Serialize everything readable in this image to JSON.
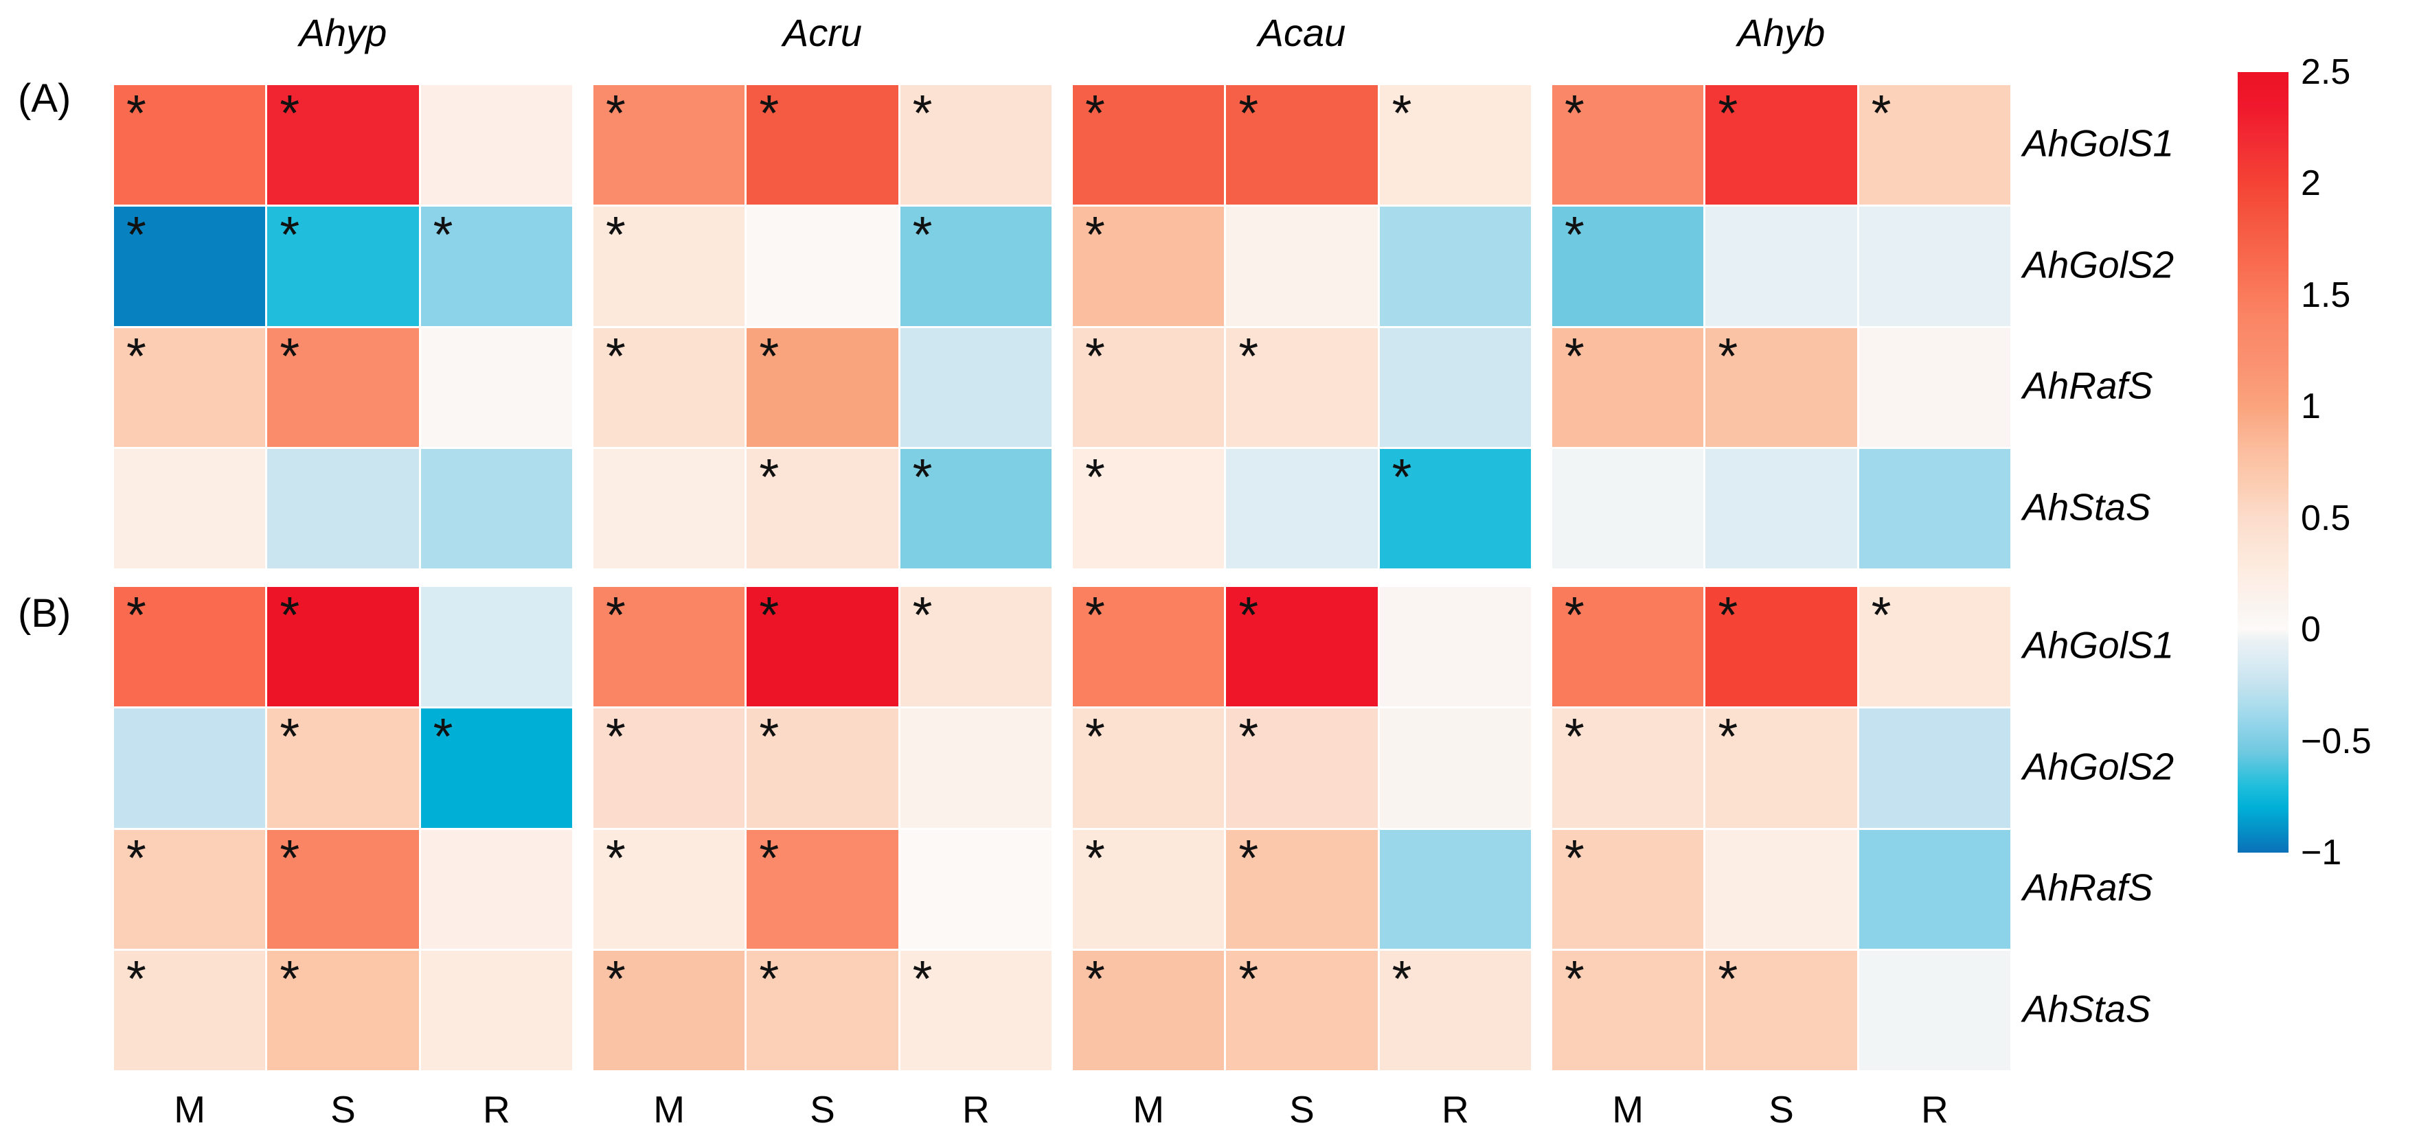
{
  "figure": {
    "significance_marker": "*",
    "background_color": "#ffffff",
    "text_color": "#000000"
  },
  "chart_data": {
    "type": "heatmap",
    "column_group_titles": [
      "Ahyp",
      "Acru",
      "Acau",
      "Ahyb"
    ],
    "row_labels": [
      "AhGolS1",
      "AhGolS2",
      "AhRafS",
      "AhStaS"
    ],
    "x_labels": [
      "M",
      "S",
      "R"
    ],
    "legend_position": "right",
    "grid": false,
    "value_range": [
      -1,
      2.5
    ],
    "colorbar": {
      "tick_labels": [
        "2.5",
        "2",
        "1.5",
        "1",
        "0.5",
        "0",
        "−0.5",
        "−1"
      ],
      "tick_values": [
        2.5,
        2,
        1.5,
        1,
        0.5,
        0,
        -0.5,
        -1
      ],
      "vmax": 2.5,
      "vmin": -1
    },
    "colormap_stops": [
      {
        "v": -1.0,
        "c": "#0A71B8"
      },
      {
        "v": -0.8,
        "c": "#00AFD6"
      },
      {
        "v": -0.7,
        "c": "#20BEDC"
      },
      {
        "v": -0.55,
        "c": "#6FC9E0"
      },
      {
        "v": -0.45,
        "c": "#8CD2E8"
      },
      {
        "v": -0.35,
        "c": "#A8DCEC"
      },
      {
        "v": -0.25,
        "c": "#C4E2EF"
      },
      {
        "v": -0.15,
        "c": "#D9EBF3"
      },
      {
        "v": -0.05,
        "c": "#EBF1F4"
      },
      {
        "v": 0.0,
        "c": "#FCFAF8"
      },
      {
        "v": 0.1,
        "c": "#FAF4F0"
      },
      {
        "v": 0.2,
        "c": "#FDEFE7"
      },
      {
        "v": 0.3,
        "c": "#FDEADD"
      },
      {
        "v": 0.4,
        "c": "#FCE3D4"
      },
      {
        "v": 0.5,
        "c": "#FCDCCB"
      },
      {
        "v": 0.65,
        "c": "#FCCDB2"
      },
      {
        "v": 0.8,
        "c": "#FBBE9F"
      },
      {
        "v": 1.0,
        "c": "#FAA47D"
      },
      {
        "v": 1.2,
        "c": "#FA9170"
      },
      {
        "v": 1.4,
        "c": "#FA8565"
      },
      {
        "v": 1.65,
        "c": "#F96A4E"
      },
      {
        "v": 1.8,
        "c": "#F55B42"
      },
      {
        "v": 2.0,
        "c": "#F54335"
      },
      {
        "v": 2.2,
        "c": "#F22A33"
      },
      {
        "v": 2.35,
        "c": "#F0182C"
      },
      {
        "v": 2.5,
        "c": "#ED1226"
      }
    ],
    "panels": [
      {
        "label": "(A)",
        "blocks": [
          {
            "title": "Ahyp",
            "values": [
              [
                1.65,
                2.25,
                0.2
              ],
              [
                -0.95,
                -0.7,
                -0.45
              ],
              [
                0.65,
                1.3,
                0.05
              ],
              [
                0.22,
                -0.22,
                -0.33
              ]
            ],
            "significant": [
              [
                1,
                1,
                0
              ],
              [
                1,
                1,
                1
              ],
              [
                1,
                1,
                0
              ],
              [
                0,
                0,
                0
              ]
            ]
          },
          {
            "title": "Acru",
            "values": [
              [
                1.3,
                1.8,
                0.42
              ],
              [
                0.32,
                0.03,
                -0.5
              ],
              [
                0.45,
                1.0,
                -0.2
              ],
              [
                0.22,
                0.38,
                -0.5
              ]
            ],
            "significant": [
              [
                1,
                1,
                1
              ],
              [
                1,
                0,
                1
              ],
              [
                1,
                1,
                0
              ],
              [
                0,
                1,
                1
              ]
            ]
          },
          {
            "title": "Acau",
            "values": [
              [
                1.75,
                1.75,
                0.3
              ],
              [
                0.8,
                0.15,
                -0.35
              ],
              [
                0.5,
                0.4,
                -0.2
              ],
              [
                0.25,
                -0.12,
                -0.7
              ]
            ],
            "significant": [
              [
                1,
                1,
                1
              ],
              [
                1,
                0,
                0
              ],
              [
                1,
                1,
                0
              ],
              [
                1,
                0,
                1
              ]
            ]
          },
          {
            "title": "Ahyb",
            "values": [
              [
                1.35,
                2.1,
                0.6
              ],
              [
                -0.55,
                -0.07,
                -0.07
              ],
              [
                0.8,
                0.75,
                0.08
              ],
              [
                -0.03,
                -0.12,
                -0.38
              ]
            ],
            "significant": [
              [
                1,
                1,
                1
              ],
              [
                1,
                0,
                0
              ],
              [
                1,
                1,
                0
              ],
              [
                0,
                0,
                0
              ]
            ]
          }
        ]
      },
      {
        "label": "(B)",
        "blocks": [
          {
            "title": "Ahyp",
            "values": [
              [
                1.65,
                2.45,
                -0.15
              ],
              [
                -0.25,
                0.62,
                -0.8
              ],
              [
                0.62,
                1.4,
                0.2
              ],
              [
                0.45,
                0.72,
                0.28
              ]
            ],
            "significant": [
              [
                1,
                1,
                0
              ],
              [
                0,
                1,
                1
              ],
              [
                1,
                1,
                0
              ],
              [
                1,
                1,
                0
              ]
            ]
          },
          {
            "title": "Acru",
            "values": [
              [
                1.4,
                2.45,
                0.38
              ],
              [
                0.48,
                0.52,
                0.15
              ],
              [
                0.28,
                1.32,
                0.02
              ],
              [
                0.75,
                0.62,
                0.28
              ]
            ],
            "significant": [
              [
                1,
                1,
                1
              ],
              [
                1,
                1,
                0
              ],
              [
                1,
                1,
                0
              ],
              [
                1,
                1,
                1
              ]
            ]
          },
          {
            "title": "Acau",
            "values": [
              [
                1.45,
                2.4,
                0.08
              ],
              [
                0.45,
                0.48,
                0.1
              ],
              [
                0.32,
                0.7,
                -0.4
              ],
              [
                0.75,
                0.68,
                0.38
              ]
            ],
            "significant": [
              [
                1,
                1,
                0
              ],
              [
                1,
                1,
                0
              ],
              [
                1,
                1,
                0
              ],
              [
                1,
                1,
                1
              ]
            ]
          },
          {
            "title": "Ahyb",
            "values": [
              [
                1.5,
                2.0,
                0.35
              ],
              [
                0.42,
                0.45,
                -0.25
              ],
              [
                0.6,
                0.22,
                -0.45
              ],
              [
                0.62,
                0.62,
                -0.03
              ]
            ],
            "significant": [
              [
                1,
                1,
                1
              ],
              [
                1,
                1,
                0
              ],
              [
                1,
                0,
                0
              ],
              [
                1,
                1,
                0
              ]
            ]
          }
        ]
      }
    ]
  }
}
